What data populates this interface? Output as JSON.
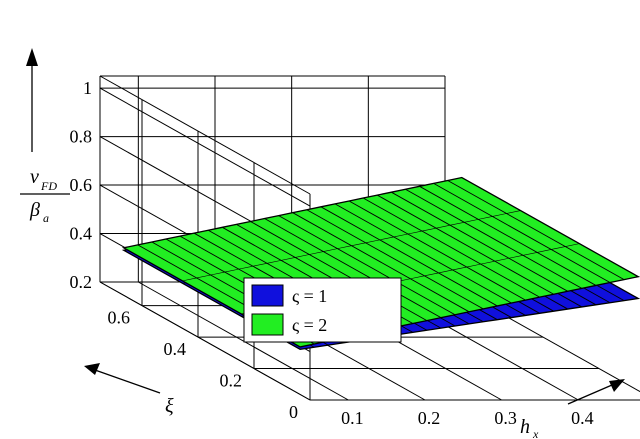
{
  "chart_data": {
    "type": "surface",
    "z_label": {
      "num": "v",
      "num_sub": "FD",
      "den": "β",
      "den_sub": "a"
    },
    "y_label": "ξ",
    "x_label": {
      "main": "h",
      "sub": "x"
    },
    "z_ticks": [
      "0.2",
      "0.4",
      "0.6",
      "0.8",
      "1"
    ],
    "y_ticks": [
      "0",
      "0.2",
      "0.4",
      "0.6"
    ],
    "x_ticks": [
      "0.1",
      "0.2",
      "0.3",
      "0.4"
    ],
    "xlim": [
      0.05,
      0.5
    ],
    "ylim": [
      0,
      0.75
    ],
    "zlim": [
      0.2,
      1.05
    ],
    "grid": true,
    "legend_position": "center",
    "series": [
      {
        "name": "ς = 1",
        "color": "#1010dd",
        "z_at_min_x": 0.37,
        "z_at_max_x": 0.58
      },
      {
        "name": "ς = 2",
        "color": "#22ee22",
        "z_at_min_x": 0.38,
        "z_at_max_x": 0.67
      }
    ]
  }
}
